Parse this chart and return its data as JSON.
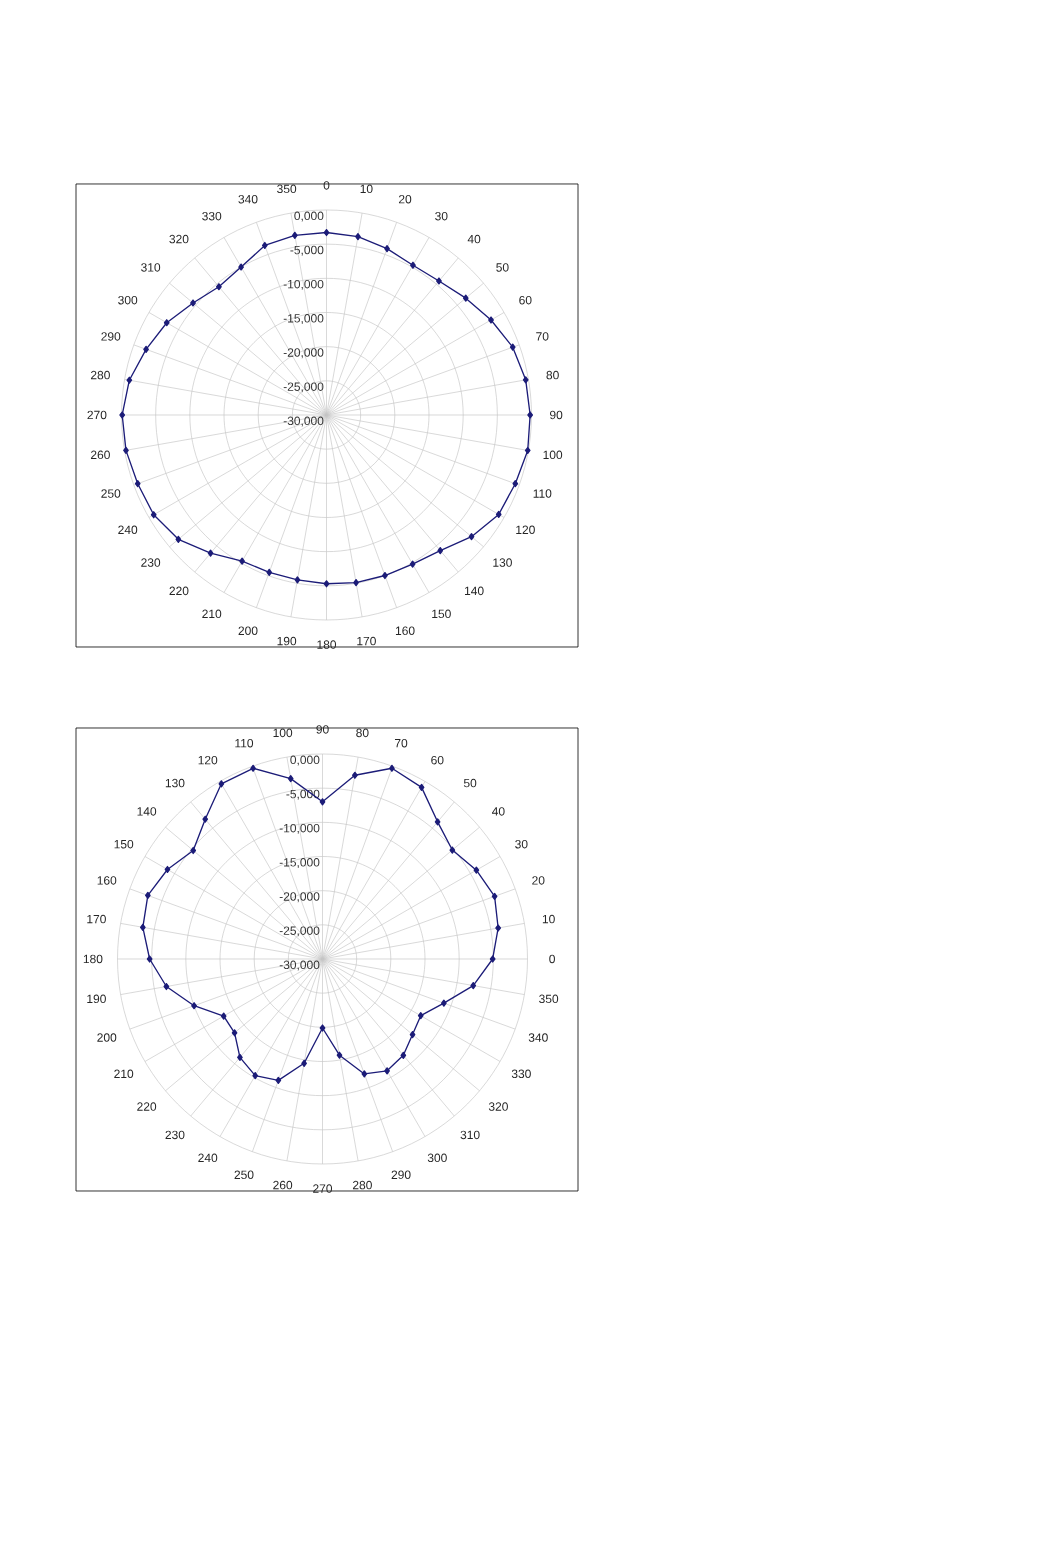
{
  "chart_data": [
    {
      "type": "radar",
      "categories": [
        "0",
        "10",
        "20",
        "30",
        "40",
        "50",
        "60",
        "70",
        "80",
        "90",
        "100",
        "110",
        "120",
        "130",
        "140",
        "150",
        "160",
        "170",
        "180",
        "190",
        "200",
        "210",
        "220",
        "230",
        "240",
        "250",
        "260",
        "270",
        "280",
        "290",
        "300",
        "310",
        "320",
        "330",
        "340",
        "350"
      ],
      "series": [
        {
          "color": "#1c1c78",
          "values": [
            -3.3,
            -3.5,
            -4.1,
            -4.7,
            -4.4,
            -3.4,
            -2.2,
            -1.0,
            -0.4,
            -0.2,
            -0.1,
            -0.6,
            -0.9,
            -2.3,
            -4.1,
            -4.8,
            -5.0,
            -5.1,
            -5.3,
            -5.5,
            -5.5,
            -5.3,
            -3.6,
            -1.7,
            -0.8,
            -0.6,
            -0.2,
            -0.1,
            -0.7,
            -1.9,
            -3.0,
            -4.5,
            -5.5,
            -5.0,
            -3.6,
            -3.3
          ]
        }
      ],
      "ylim": [
        -30,
        0
      ],
      "yticks": [
        {
          "value": -30,
          "label": "-30,000"
        },
        {
          "value": -25,
          "label": "-25,000"
        },
        {
          "value": -20,
          "label": "-20,000"
        },
        {
          "value": -15,
          "label": "-15,000"
        },
        {
          "value": -10,
          "label": "-10,000"
        },
        {
          "value": -5,
          "label": "-5,000"
        },
        {
          "value": 0,
          "label": "0,000"
        }
      ],
      "grid": true,
      "marker": "diamond"
    },
    {
      "type": "radar",
      "categories": [
        "90",
        "80",
        "70",
        "60",
        "50",
        "40",
        "30",
        "20",
        "10",
        "0",
        "350",
        "340",
        "330",
        "320",
        "310",
        "300",
        "290",
        "280",
        "270",
        "260",
        "250",
        "240",
        "230",
        "220",
        "210",
        "200",
        "190",
        "180",
        "170",
        "160",
        "150",
        "140",
        "130",
        "120",
        "110",
        "100"
      ],
      "series": [
        {
          "color": "#1c1c78",
          "values": [
            -7.0,
            -2.7,
            -0.3,
            -1.0,
            -3.8,
            -5.2,
            -4.0,
            -3.2,
            -3.9,
            -5.1,
            -7.6,
            -11.1,
            -13.4,
            -12.8,
            -11.6,
            -11.1,
            -12.1,
            -15.7,
            -19.9,
            -14.5,
            -11.1,
            -10.3,
            -11.2,
            -13.2,
            -13.3,
            -10.0,
            -6.8,
            -4.7,
            -3.3,
            -2.8,
            -3.8,
            -5.3,
            -3.3,
            -0.4,
            -0.3,
            -3.2
          ]
        }
      ],
      "ylim": [
        -30,
        0
      ],
      "yticks": [
        {
          "value": -30,
          "label": "-30,000"
        },
        {
          "value": -25,
          "label": "-25,000"
        },
        {
          "value": -20,
          "label": "-20,000"
        },
        {
          "value": -15,
          "label": "-15,000"
        },
        {
          "value": -10,
          "label": "-10,000"
        },
        {
          "value": -5,
          "label": "-5,000"
        },
        {
          "value": 0,
          "label": "0,000"
        }
      ],
      "grid": true,
      "marker": "diamond"
    }
  ]
}
